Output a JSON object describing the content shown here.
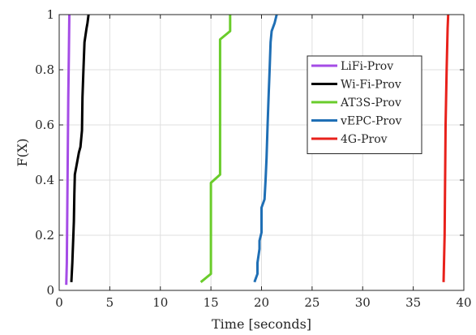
{
  "chart_data": {
    "type": "line",
    "title": "",
    "xlabel": "Time [seconds]",
    "ylabel": "F(X)",
    "xlim": [
      0,
      40
    ],
    "ylim": [
      0,
      1
    ],
    "xticks": [
      0,
      5,
      10,
      15,
      20,
      25,
      30,
      35,
      40
    ],
    "yticks": [
      0,
      0.2,
      0.4,
      0.6,
      0.8,
      1
    ],
    "xtick_labels": [
      "0",
      "5",
      "10",
      "15",
      "20",
      "25",
      "30",
      "35",
      "40"
    ],
    "ytick_labels": [
      "0",
      "0.2",
      "0.4",
      "0.6",
      "0.8",
      "1"
    ],
    "grid": true,
    "legend_position": "top-right",
    "series": [
      {
        "name": "LiFi-Prov",
        "color": "#a54ce6",
        "points": [
          [
            0.7,
            0.02
          ],
          [
            0.75,
            0.1
          ],
          [
            0.8,
            0.3
          ],
          [
            0.85,
            0.5
          ],
          [
            0.9,
            0.7
          ],
          [
            0.95,
            0.85
          ],
          [
            1.0,
            1.0
          ]
        ]
      },
      {
        "name": "Wi-Fi-Prov",
        "color": "#000000",
        "points": [
          [
            1.2,
            0.03
          ],
          [
            1.3,
            0.1
          ],
          [
            1.45,
            0.25
          ],
          [
            1.5,
            0.35
          ],
          [
            1.55,
            0.42
          ],
          [
            1.7,
            0.45
          ],
          [
            1.95,
            0.5
          ],
          [
            2.1,
            0.52
          ],
          [
            2.25,
            0.58
          ],
          [
            2.3,
            0.7
          ],
          [
            2.4,
            0.8
          ],
          [
            2.5,
            0.9
          ],
          [
            2.7,
            0.95
          ],
          [
            2.8,
            0.97
          ],
          [
            2.9,
            1.0
          ]
        ]
      },
      {
        "name": "AT3S-Prov",
        "color": "#6acc2b",
        "points": [
          [
            14.0,
            0.03
          ],
          [
            15.0,
            0.06
          ],
          [
            15.0,
            0.39
          ],
          [
            15.9,
            0.42
          ],
          [
            15.9,
            0.91
          ],
          [
            16.9,
            0.94
          ],
          [
            16.9,
            1.0
          ]
        ]
      },
      {
        "name": "vEPC-Prov",
        "color": "#1f6fb5",
        "points": [
          [
            19.3,
            0.03
          ],
          [
            19.6,
            0.06
          ],
          [
            19.6,
            0.1
          ],
          [
            19.8,
            0.15
          ],
          [
            19.8,
            0.18
          ],
          [
            20.0,
            0.21
          ],
          [
            20.0,
            0.3
          ],
          [
            20.3,
            0.33
          ],
          [
            20.4,
            0.4
          ],
          [
            20.5,
            0.48
          ],
          [
            20.6,
            0.6
          ],
          [
            20.7,
            0.7
          ],
          [
            20.8,
            0.8
          ],
          [
            20.9,
            0.9
          ],
          [
            21.0,
            0.94
          ],
          [
            21.3,
            0.97
          ],
          [
            21.5,
            1.0
          ]
        ]
      },
      {
        "name": "4G-Prov",
        "color": "#e8211b",
        "points": [
          [
            38.0,
            0.03
          ],
          [
            38.1,
            0.2
          ],
          [
            38.15,
            0.4
          ],
          [
            38.2,
            0.6
          ],
          [
            38.3,
            0.8
          ],
          [
            38.4,
            0.95
          ],
          [
            38.45,
            1.0
          ]
        ]
      }
    ]
  }
}
